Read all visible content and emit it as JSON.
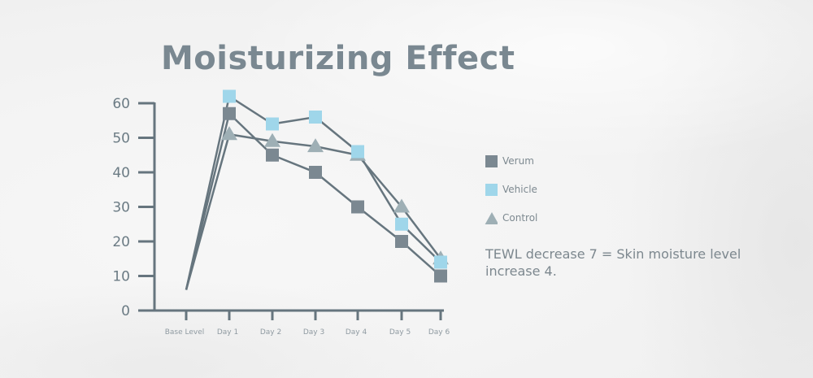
{
  "title": "Moisturizing Effect",
  "note": "TEWL decrease 7 = Skin moisture level increase 4.",
  "colors": {
    "axis": "#66757e",
    "line": "#66757e",
    "verum": "#7b8891",
    "vehicle": "#9fd6ea",
    "control": "#9eafb5",
    "ytick_text": "#6b7b84",
    "xtick_text": "#8f9aa1"
  },
  "chart_data": {
    "type": "line",
    "title": "Moisturizing Effect",
    "xlabel": "",
    "ylabel": "",
    "categories": [
      "Base Level",
      "Day 1",
      "Day 2",
      "Day 3",
      "Day 4",
      "Day 5",
      "Day 6"
    ],
    "yticks": [
      0,
      10,
      20,
      30,
      40,
      50,
      60
    ],
    "ylim": [
      0,
      60
    ],
    "grid": false,
    "legend_position": "right",
    "series": [
      {
        "name": "Verum",
        "marker": "square",
        "color": "#7b8891",
        "values": [
          6,
          57,
          45,
          40,
          30,
          20,
          10
        ]
      },
      {
        "name": "Vehicle",
        "marker": "square",
        "color": "#9fd6ea",
        "values": [
          6,
          62,
          54,
          56,
          46,
          25,
          14
        ]
      },
      {
        "name": "Control",
        "marker": "triangle",
        "color": "#9eafb5",
        "values": [
          6,
          51,
          49,
          47.5,
          45,
          30,
          15
        ]
      }
    ]
  }
}
